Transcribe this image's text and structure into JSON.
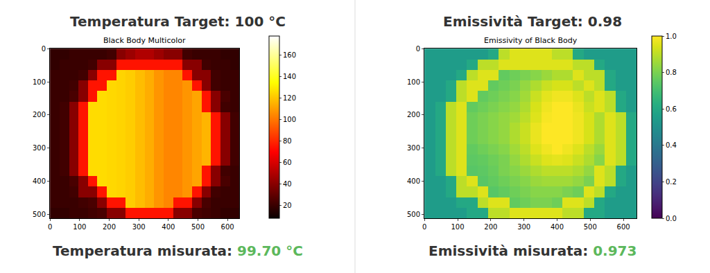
{
  "chart_data": [
    {
      "type": "heatmap",
      "heading": "Temperatura Target: 100 °C",
      "title": "Black Body Multicolor",
      "result": {
        "label": "Temperatura misurata:",
        "value": "99.70 °C",
        "color": "#5cb85c"
      },
      "xlim": [
        -0.5,
        639.5
      ],
      "xticks": [
        0,
        100,
        200,
        300,
        400,
        500,
        600
      ],
      "ylim": [
        511.5,
        -0.5
      ],
      "yticks": [
        0,
        100,
        200,
        300,
        400,
        500
      ],
      "x": [
        16,
        48,
        80,
        112,
        144,
        176,
        208,
        240,
        272,
        304,
        336,
        368,
        400,
        432,
        464,
        496,
        528,
        560,
        592,
        624
      ],
      "y": [
        16,
        48,
        80,
        112,
        144,
        176,
        208,
        240,
        272,
        304,
        336,
        368,
        400,
        432,
        464,
        496
      ],
      "cells": [
        [
          18,
          18,
          20,
          20,
          20,
          20,
          22,
          40,
          45,
          50,
          50,
          45,
          40,
          40,
          22,
          20,
          20,
          20,
          18,
          18
        ],
        [
          18,
          20,
          20,
          20,
          22,
          40,
          40,
          75,
          75,
          75,
          75,
          75,
          75,
          75,
          40,
          40,
          22,
          20,
          20,
          18
        ],
        [
          20,
          20,
          20,
          22,
          40,
          75,
          75,
          124,
          122,
          118,
          114,
          108,
          104,
          104,
          75,
          40,
          40,
          22,
          20,
          20
        ],
        [
          20,
          20,
          22,
          40,
          75,
          75,
          125,
          124,
          122,
          118,
          114,
          108,
          104,
          104,
          108,
          75,
          40,
          22,
          20,
          20
        ],
        [
          20,
          20,
          24,
          40,
          75,
          126,
          125,
          124,
          122,
          118,
          114,
          108,
          104,
          104,
          108,
          112,
          75,
          40,
          24,
          20
        ],
        [
          20,
          22,
          40,
          75,
          126,
          126,
          125,
          124,
          122,
          118,
          114,
          108,
          104,
          104,
          108,
          112,
          75,
          40,
          22,
          20
        ],
        [
          20,
          22,
          40,
          75,
          126,
          126,
          125,
          124,
          122,
          118,
          114,
          108,
          104,
          104,
          108,
          112,
          116,
          75,
          40,
          22
        ],
        [
          20,
          22,
          40,
          75,
          126,
          126,
          125,
          124,
          122,
          118,
          114,
          108,
          104,
          104,
          108,
          112,
          116,
          75,
          40,
          22
        ],
        [
          20,
          22,
          40,
          75,
          126,
          126,
          125,
          124,
          122,
          118,
          114,
          108,
          104,
          104,
          108,
          112,
          116,
          75,
          40,
          22
        ],
        [
          20,
          22,
          40,
          75,
          126,
          126,
          125,
          124,
          122,
          118,
          114,
          108,
          104,
          104,
          108,
          112,
          116,
          75,
          40,
          22
        ],
        [
          20,
          22,
          40,
          75,
          126,
          126,
          125,
          124,
          122,
          118,
          114,
          108,
          104,
          104,
          108,
          112,
          116,
          75,
          40,
          22
        ],
        [
          20,
          22,
          40,
          75,
          126,
          126,
          125,
          124,
          122,
          118,
          114,
          108,
          104,
          104,
          108,
          112,
          75,
          40,
          22,
          20
        ],
        [
          20,
          20,
          24,
          40,
          75,
          126,
          125,
          124,
          122,
          118,
          114,
          108,
          104,
          104,
          108,
          112,
          75,
          40,
          24,
          20
        ],
        [
          20,
          20,
          22,
          40,
          40,
          75,
          125,
          124,
          122,
          118,
          114,
          108,
          104,
          104,
          108,
          75,
          40,
          22,
          20,
          20
        ],
        [
          20,
          20,
          20,
          22,
          24,
          40,
          75,
          75,
          122,
          118,
          114,
          108,
          104,
          75,
          75,
          40,
          24,
          20,
          20,
          20
        ],
        [
          18,
          18,
          20,
          20,
          22,
          24,
          40,
          40,
          75,
          75,
          75,
          75,
          75,
          40,
          40,
          24,
          22,
          20,
          18,
          18
        ]
      ],
      "colorbar": {
        "range": [
          8,
          178
        ],
        "ticks": [
          20,
          40,
          60,
          80,
          100,
          120,
          140,
          160
        ]
      }
    },
    {
      "type": "heatmap",
      "heading": "Emissività Target: 0.98",
      "title": "Emissivity of Black Body",
      "result": {
        "label": "Emissività misurata:",
        "value": "0.973",
        "color": "#5cb85c"
      },
      "xlim": [
        -0.5,
        639.5
      ],
      "xticks": [
        0,
        100,
        200,
        300,
        400,
        500,
        600
      ],
      "ylim": [
        511.5,
        -0.5
      ],
      "yticks": [
        0,
        100,
        200,
        300,
        400,
        500
      ],
      "x": [
        16,
        48,
        80,
        112,
        144,
        176,
        208,
        240,
        272,
        304,
        336,
        368,
        400,
        432,
        464,
        496,
        528,
        560,
        592,
        624
      ],
      "y": [
        16,
        48,
        80,
        112,
        144,
        176,
        208,
        240,
        272,
        304,
        336,
        368,
        400,
        432,
        464,
        496
      ],
      "cells": [
        [
          0.55,
          0.55,
          0.55,
          0.55,
          0.55,
          0.55,
          0.6,
          0.9,
          0.95,
          0.95,
          0.95,
          0.95,
          0.9,
          0.9,
          0.6,
          0.55,
          0.55,
          0.55,
          0.55,
          0.55
        ],
        [
          0.55,
          0.55,
          0.55,
          0.55,
          0.6,
          0.9,
          0.9,
          0.95,
          0.95,
          0.95,
          0.95,
          0.95,
          0.95,
          0.95,
          0.9,
          0.9,
          0.6,
          0.55,
          0.55,
          0.55
        ],
        [
          0.55,
          0.55,
          0.55,
          0.6,
          0.9,
          0.95,
          0.95,
          0.76,
          0.78,
          0.8,
          0.82,
          0.85,
          0.88,
          0.88,
          0.95,
          0.9,
          0.9,
          0.6,
          0.55,
          0.55
        ],
        [
          0.55,
          0.55,
          0.6,
          0.9,
          0.95,
          0.95,
          0.76,
          0.78,
          0.8,
          0.84,
          0.88,
          0.92,
          0.94,
          0.94,
          0.9,
          0.95,
          0.9,
          0.6,
          0.55,
          0.55
        ],
        [
          0.55,
          0.55,
          0.6,
          0.9,
          0.95,
          0.76,
          0.78,
          0.8,
          0.82,
          0.86,
          0.92,
          0.96,
          0.98,
          0.98,
          0.95,
          0.9,
          0.95,
          0.9,
          0.6,
          0.55
        ],
        [
          0.55,
          0.6,
          0.9,
          0.95,
          0.76,
          0.78,
          0.8,
          0.82,
          0.84,
          0.88,
          0.94,
          0.98,
          1.0,
          1.0,
          0.97,
          0.92,
          0.95,
          0.9,
          0.6,
          0.55
        ],
        [
          0.55,
          0.6,
          0.9,
          0.95,
          0.78,
          0.8,
          0.82,
          0.84,
          0.86,
          0.9,
          0.95,
          0.99,
          1.0,
          1.0,
          0.98,
          0.94,
          0.88,
          0.95,
          0.9,
          0.6
        ],
        [
          0.55,
          0.6,
          0.9,
          0.95,
          0.78,
          0.8,
          0.82,
          0.84,
          0.88,
          0.92,
          0.97,
          1.0,
          1.0,
          1.0,
          0.98,
          0.94,
          0.88,
          0.95,
          0.9,
          0.6
        ],
        [
          0.55,
          0.6,
          0.9,
          0.95,
          0.78,
          0.8,
          0.82,
          0.84,
          0.88,
          0.92,
          0.97,
          1.0,
          1.0,
          1.0,
          0.98,
          0.94,
          0.88,
          0.95,
          0.9,
          0.6
        ],
        [
          0.55,
          0.6,
          0.9,
          0.95,
          0.76,
          0.78,
          0.8,
          0.82,
          0.86,
          0.9,
          0.95,
          0.98,
          1.0,
          0.98,
          0.95,
          0.9,
          0.85,
          0.95,
          0.9,
          0.6
        ],
        [
          0.55,
          0.6,
          0.9,
          0.95,
          0.75,
          0.76,
          0.78,
          0.8,
          0.84,
          0.88,
          0.92,
          0.95,
          0.96,
          0.95,
          0.92,
          0.88,
          0.82,
          0.95,
          0.9,
          0.6
        ],
        [
          0.55,
          0.6,
          0.9,
          0.95,
          0.74,
          0.75,
          0.77,
          0.8,
          0.82,
          0.85,
          0.88,
          0.9,
          0.9,
          0.9,
          0.88,
          0.84,
          0.95,
          0.9,
          0.6,
          0.55
        ],
        [
          0.55,
          0.55,
          0.6,
          0.9,
          0.95,
          0.74,
          0.76,
          0.78,
          0.8,
          0.82,
          0.85,
          0.86,
          0.86,
          0.86,
          0.84,
          0.8,
          0.95,
          0.9,
          0.6,
          0.55
        ],
        [
          0.55,
          0.55,
          0.6,
          0.9,
          0.9,
          0.95,
          0.74,
          0.76,
          0.78,
          0.8,
          0.82,
          0.82,
          0.82,
          0.8,
          0.78,
          0.95,
          0.9,
          0.6,
          0.55,
          0.55
        ],
        [
          0.55,
          0.55,
          0.55,
          0.6,
          0.6,
          0.9,
          0.95,
          0.95,
          0.76,
          0.78,
          0.8,
          0.8,
          0.78,
          0.95,
          0.95,
          0.9,
          0.6,
          0.55,
          0.55,
          0.55
        ],
        [
          0.55,
          0.55,
          0.55,
          0.55,
          0.6,
          0.6,
          0.9,
          0.9,
          0.95,
          0.95,
          0.95,
          0.95,
          0.95,
          0.9,
          0.9,
          0.6,
          0.6,
          0.55,
          0.55,
          0.55
        ]
      ],
      "colorbar": {
        "range": [
          0,
          1
        ],
        "ticks": [
          {
            "value": 0,
            "label": "0.0"
          },
          {
            "value": 0.2,
            "label": "0.2"
          },
          {
            "value": 0.4,
            "label": "0.4"
          },
          {
            "value": 0.6,
            "label": "0.6"
          },
          {
            "value": 0.8,
            "label": "0.8"
          },
          {
            "value": 1,
            "label": "1.0"
          }
        ]
      }
    }
  ]
}
